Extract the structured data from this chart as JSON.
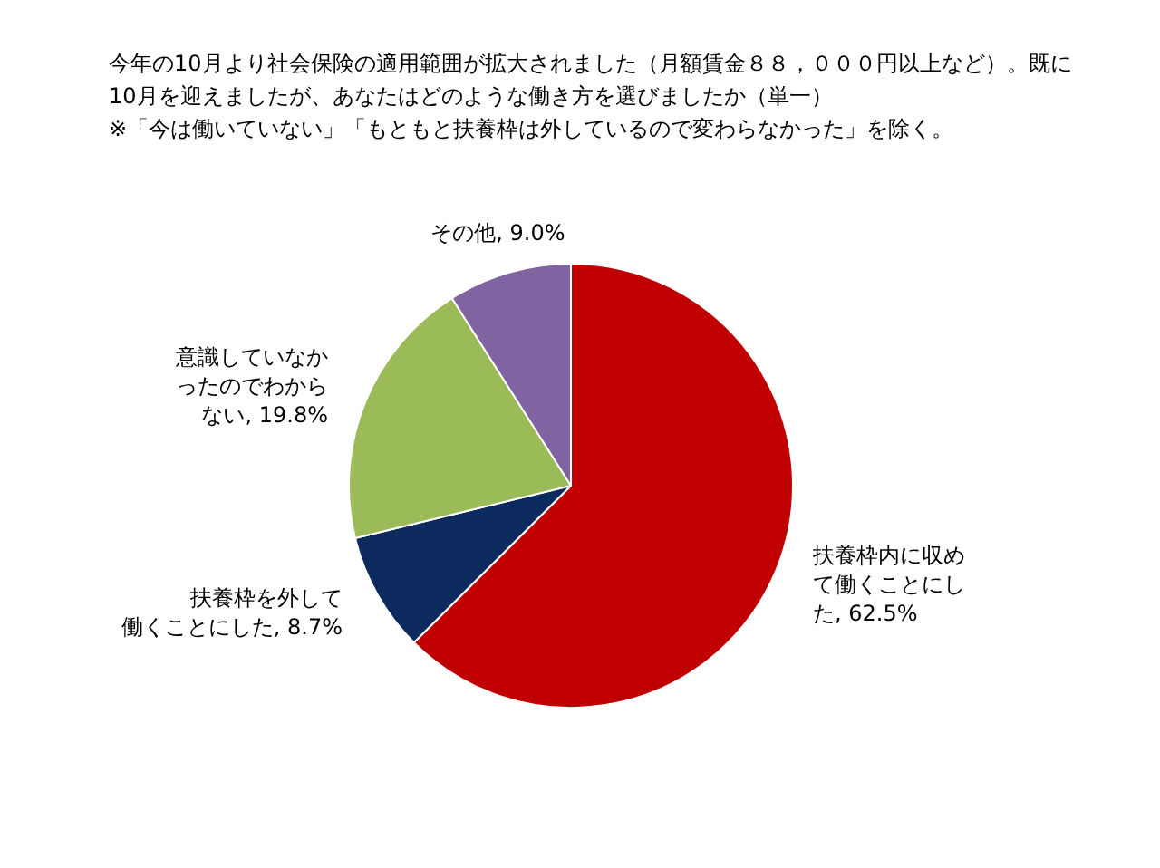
{
  "chart_data": {
    "type": "pie",
    "title": "今年の10月より社会保険の適用範囲が拡大されました（月額賃金８８，０００円以上など）。既に10月を迎えましたが、あなたはどのような働き方を選びましたか（単一）",
    "subtitle": "※「今は働いていない」「もともと扶養枠は外しているので変わらなかった」を除く。",
    "categories": [
      "扶養枠内に収めて働くことにした",
      "扶養枠を外して働くことにした",
      "意識していなかったのでわからない",
      "その他"
    ],
    "values": [
      62.5,
      8.7,
      19.8,
      9.0
    ],
    "value_labels": [
      ", 62.5%",
      ", 8.7%",
      ", 19.8%",
      ", 9.0%"
    ],
    "colors": [
      "#c00000",
      "#0d2a5e",
      "#9bbb59",
      "#8064a2"
    ],
    "legend": false
  }
}
